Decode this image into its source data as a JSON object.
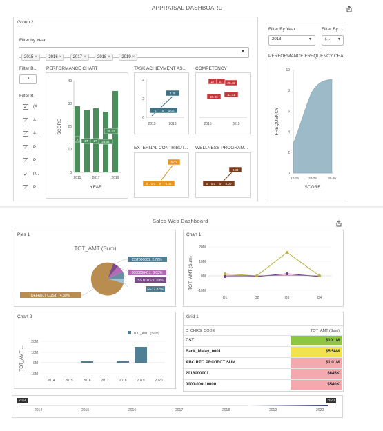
{
  "appraisal": {
    "title": "APPRAISAL DASHBOARD",
    "group_title": "Group 2",
    "filter_year_label": "Filter by Year",
    "year_chips": [
      "2015",
      "2016",
      "2017",
      "2018",
      "2019"
    ],
    "filter_b_label": "Filter B...",
    "filter_b_value": "...",
    "filter_b2_label": "Filter B...",
    "checkbox_items": [
      "(A",
      "A...",
      "A...",
      "P...",
      "P...",
      "P...",
      "P..."
    ],
    "perf_chart": {
      "title": "PERFORMANCE CHART",
      "ylabel": "SCORE",
      "xlabel": "YEAR",
      "yticks": [
        "0",
        "10",
        "20",
        "30",
        "40"
      ],
      "xticks": [
        "2015",
        "2017",
        "2019"
      ],
      "value_labels": [
        "2",
        "27",
        "27",
        "26.42",
        "35.53"
      ]
    },
    "task_chart": {
      "title": "TASK ACHIEVMENT AS...",
      "yticks": [
        "0",
        "2",
        "4"
      ],
      "xticks": [
        "2015",
        "2018"
      ],
      "labels": [
        "3.38",
        "0",
        "0",
        "0.00"
      ]
    },
    "competency_chart": {
      "title": "COMPETENCY",
      "xticks": [
        "2015",
        "2019"
      ],
      "labels": [
        "27",
        "27",
        "26.42",
        "26.90",
        "31.11"
      ]
    },
    "external_chart": {
      "title": "EXTERNAL CONTRIBUT...",
      "labels": [
        "0.01",
        "0",
        "0.0",
        "0",
        "0.00"
      ]
    },
    "wellness_chart": {
      "title": "WELLNESS PROGRAM...",
      "labels": [
        "0.43",
        "0",
        "0.0",
        "0",
        "0.00"
      ]
    },
    "right": {
      "filter_year_label": "Filter By Year",
      "filter_year_value": "2018",
      "filter_by_label": "Filter By ...",
      "filter_by_value": "(...",
      "freq_title": "PERFORMANCE FREQUENCY CHA...",
      "ylabel": "FREQUENCY",
      "xlabel": "SCORE",
      "yticks": [
        "0",
        "2",
        "4",
        "6",
        "8",
        "10"
      ],
      "xticks": [
        "10-19",
        "20-29",
        "30-39"
      ]
    }
  },
  "sales": {
    "title": "Sales Web Dashboard",
    "pie": {
      "panel_title": "Pies 1",
      "title": "TOT_AMT (Sum)",
      "labels": [
        "C5T000001: 2.72%",
        "0000000417: 8.03%",
        "SSTCUS: 0.03%",
        "FE: 2.87%",
        "DEFAULT CUST: 74.30%"
      ]
    },
    "chart1": {
      "panel_title": "Chart 1",
      "ylabel": "TOT_AMT (Sum)",
      "yticks": [
        "20M",
        "10M",
        "0M",
        "-10M",
        "-20M"
      ],
      "xticks": [
        "Q1",
        "Q2",
        "Q3",
        "Q4"
      ]
    },
    "chart2": {
      "panel_title": "Chart 2",
      "legend": "TOT_AMT (Sum)",
      "ylabel": "TOT_AMT ...",
      "yticks": [
        "20M",
        "10M",
        "0M",
        "-10M"
      ],
      "xticks": [
        "2014",
        "2015",
        "2016",
        "2017",
        "2018",
        "2019",
        "2020"
      ]
    },
    "grid": {
      "panel_title": "Grid 1",
      "col1": "D_CHRG_CODE",
      "col2": "TOT_AMT (Sum)",
      "rows": [
        {
          "code": "CST",
          "amount": "$10.1M",
          "color": "#8dc63f"
        },
        {
          "code": "Back_Malay_0001",
          "amount": "$5.58M",
          "color": "#f2e24b"
        },
        {
          "code": "ABC RTO PROJECT SUM",
          "amount": "$1.01M",
          "color": "#f4a9ae"
        },
        {
          "code": "2016000001",
          "amount": "$645K",
          "color": "#f4a9ae"
        },
        {
          "code": "0000-000-10000",
          "amount": "$540K",
          "color": "#f4a9ae"
        }
      ]
    },
    "slider": {
      "start": "2014",
      "end": "2020",
      "ticks": [
        "2014",
        "2015",
        "2016",
        "2017",
        "2018",
        "2019",
        "2020"
      ]
    }
  }
}
